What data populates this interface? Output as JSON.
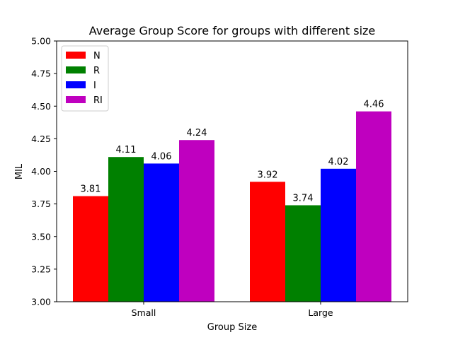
{
  "chart_data": {
    "type": "bar",
    "title": "Average Group Score for groups with different size",
    "xlabel": "Group Size",
    "ylabel": "MIL",
    "categories": [
      "Small",
      "Large"
    ],
    "ylim": [
      3.0,
      5.0
    ],
    "yticks": [
      3.0,
      3.25,
      3.5,
      3.75,
      4.0,
      4.25,
      4.5,
      4.75,
      5.0
    ],
    "ytick_labels": [
      "3.00",
      "3.25",
      "3.50",
      "3.75",
      "4.00",
      "4.25",
      "4.50",
      "4.75",
      "5.00"
    ],
    "series": [
      {
        "name": "N",
        "color": "#ff0000",
        "values": [
          3.81,
          3.92
        ],
        "labels": [
          "3.81",
          "3.92"
        ]
      },
      {
        "name": "R",
        "color": "#008000",
        "values": [
          4.11,
          3.74
        ],
        "labels": [
          "4.11",
          "3.74"
        ]
      },
      {
        "name": "I",
        "color": "#0000ff",
        "values": [
          4.06,
          4.02
        ],
        "labels": [
          "4.06",
          "4.02"
        ]
      },
      {
        "name": "RI",
        "color": "#bf00bf",
        "values": [
          4.24,
          4.46
        ],
        "labels": [
          "4.24",
          "4.46"
        ]
      }
    ],
    "legend": {
      "position": "top-left"
    },
    "grid": false
  }
}
